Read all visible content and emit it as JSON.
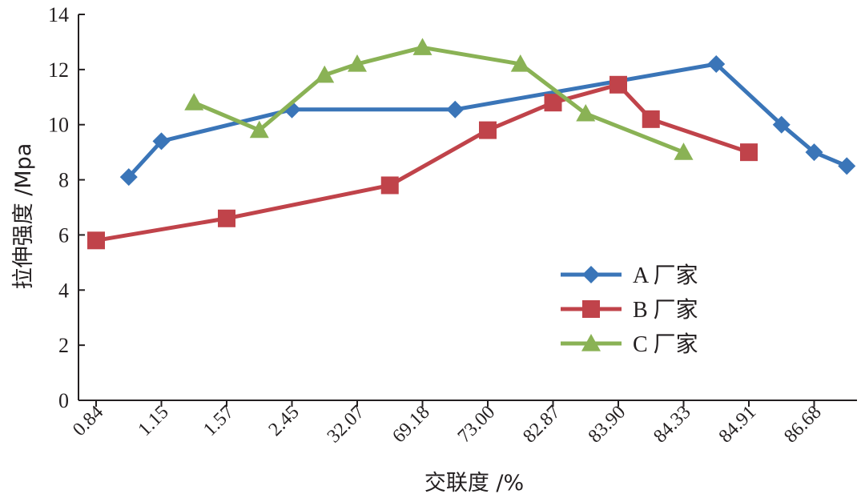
{
  "chart_data": {
    "type": "line",
    "xlabel": "交联度 /%",
    "ylabel": "拉伸强度 /Mpa",
    "categories": [
      "0.84",
      "1.15",
      "1.57",
      "2.45",
      "32.07",
      "69.18",
      "73.00",
      "82.87",
      "83.90",
      "84.33",
      "84.91",
      "86.68"
    ],
    "ylim": [
      0,
      14
    ],
    "yticks": [
      "0",
      "2",
      "4",
      "6",
      "8",
      "10",
      "12",
      "14"
    ],
    "grid": false,
    "legend_position": "right-middle",
    "series": [
      {
        "name": "A 厂家",
        "color": "#3a75b8",
        "marker": "diamond",
        "points": [
          {
            "x": 0.5,
            "y": 8.1
          },
          {
            "x": 1.0,
            "y": 9.4
          },
          {
            "x": 3.0,
            "y": 10.55
          },
          {
            "x": 5.5,
            "y": 10.55
          },
          {
            "x": 9.5,
            "y": 12.2
          },
          {
            "x": 10.5,
            "y": 10.0
          },
          {
            "x": 11.0,
            "y": 9.0
          },
          {
            "x": 11.5,
            "y": 8.5
          }
        ]
      },
      {
        "name": "B 厂家",
        "color": "#c0434a",
        "marker": "square",
        "points": [
          {
            "x": 0.0,
            "y": 5.8
          },
          {
            "x": 2.0,
            "y": 6.6
          },
          {
            "x": 4.5,
            "y": 7.8
          },
          {
            "x": 6.0,
            "y": 9.8
          },
          {
            "x": 7.0,
            "y": 10.8
          },
          {
            "x": 8.0,
            "y": 11.45
          },
          {
            "x": 8.5,
            "y": 10.2
          },
          {
            "x": 10.0,
            "y": 9.0
          }
        ]
      },
      {
        "name": "C 厂家",
        "color": "#8ab255",
        "marker": "triangle",
        "points": [
          {
            "x": 1.5,
            "y": 10.8
          },
          {
            "x": 2.5,
            "y": 9.8
          },
          {
            "x": 3.5,
            "y": 11.8
          },
          {
            "x": 4.0,
            "y": 12.2
          },
          {
            "x": 5.0,
            "y": 12.8
          },
          {
            "x": 6.5,
            "y": 12.2
          },
          {
            "x": 7.5,
            "y": 10.4
          },
          {
            "x": 9.0,
            "y": 9.0
          }
        ]
      }
    ]
  }
}
